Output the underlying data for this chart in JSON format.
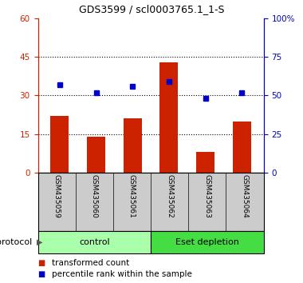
{
  "title": "GDS3599 / scl0003765.1_1-S",
  "samples": [
    "GSM435059",
    "GSM435060",
    "GSM435061",
    "GSM435062",
    "GSM435063",
    "GSM435064"
  ],
  "bar_values": [
    22.0,
    14.0,
    21.0,
    43.0,
    8.0,
    20.0
  ],
  "dot_values_pct": [
    57,
    52,
    56,
    59,
    48,
    52
  ],
  "bar_color": "#cc2200",
  "dot_color": "#0000cc",
  "left_ylim": [
    0,
    60
  ],
  "right_ylim": [
    0,
    100
  ],
  "left_yticks": [
    0,
    15,
    30,
    45,
    60
  ],
  "right_yticks": [
    0,
    25,
    50,
    75,
    100
  ],
  "right_yticklabels": [
    "0",
    "25",
    "50",
    "75",
    "100%"
  ],
  "hlines": [
    15,
    30,
    45
  ],
  "protocol_label": "protocol",
  "legend_bar_label": "transformed count",
  "legend_dot_label": "percentile rank within the sample",
  "title_fontsize": 9,
  "tick_fontsize": 7.5,
  "bar_width": 0.5,
  "control_color": "#aaffaa",
  "depletion_color": "#44dd44",
  "gray_bg": "#cccccc"
}
